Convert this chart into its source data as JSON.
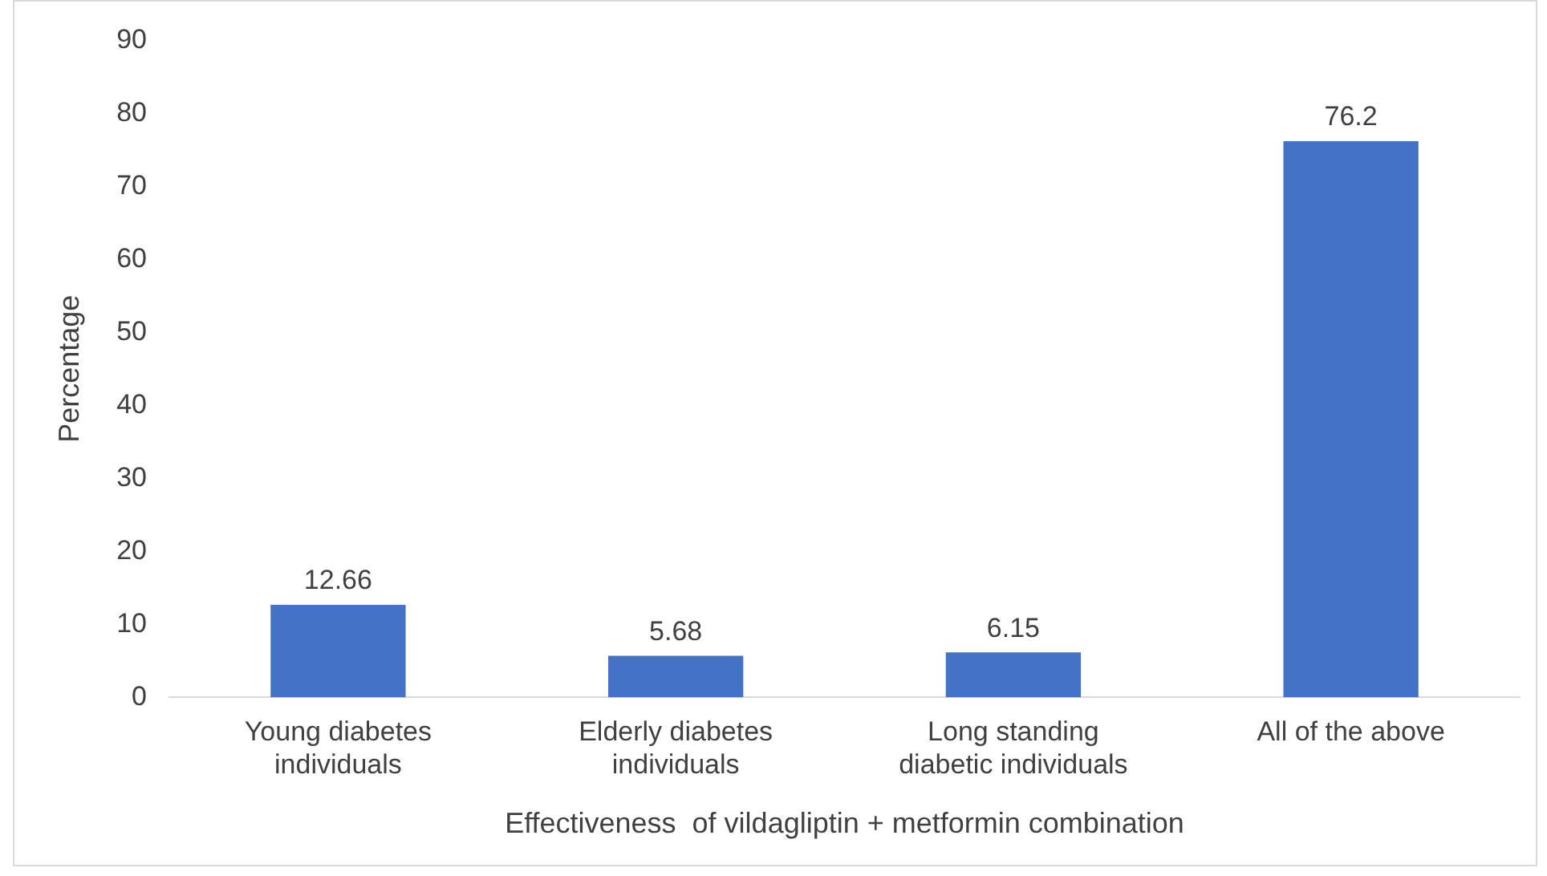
{
  "chart_data": {
    "type": "bar",
    "categories": [
      "Young diabetes individuals",
      "Elderly diabetes individuals",
      "Long standing diabetic individuals",
      "All of the above"
    ],
    "values": [
      12.66,
      5.68,
      6.15,
      76.2
    ],
    "color": "#4472c4",
    "xlabel": "Effectiveness  of vildagliptin + metformin combination",
    "ylabel": "Percentage",
    "ylim": [
      0,
      90
    ],
    "yticks": [
      0,
      10,
      20,
      30,
      40,
      50,
      60,
      70,
      80,
      90
    ],
    "grid": false,
    "legend": false,
    "data_labels": true
  }
}
